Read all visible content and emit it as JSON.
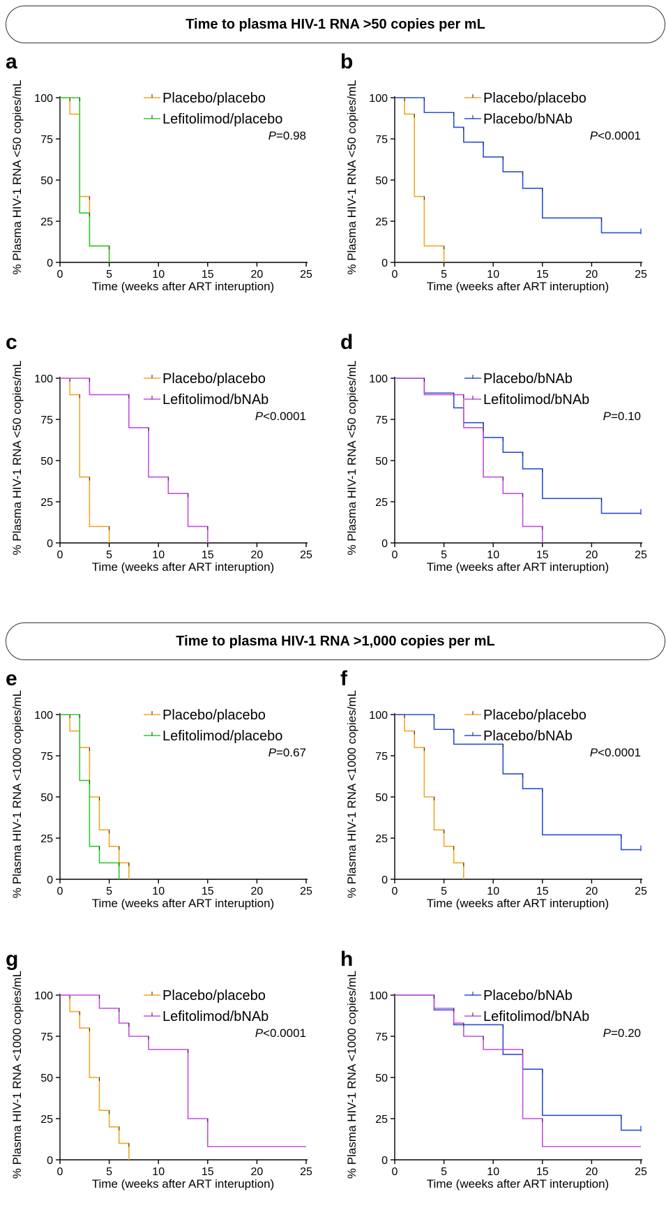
{
  "banners": [
    "Time to plasma HIV-1 RNA >50 copies per mL",
    "Time to plasma HIV-1 RNA >1,000 copies per mL"
  ],
  "colors": {
    "Placebo/placebo": "#f5a623",
    "Lefitolimod/placebo": "#2ecc2e",
    "Placebo/bNAb": "#2a4fd6",
    "Lefitolimod/bNAb": "#c44ee0"
  },
  "chart_data": [
    {
      "panel": "a",
      "type": "line",
      "step": true,
      "xlabel": "Time (weeks after ART interuption)",
      "ylabel": "% Plasma HIV-1 RNA <50 copies/mL",
      "xlim": [
        0,
        25
      ],
      "ylim": [
        0,
        100
      ],
      "xticks": [
        0,
        5,
        10,
        15,
        20,
        25
      ],
      "yticks": [
        0,
        25,
        50,
        75,
        100
      ],
      "pvalue": "0.98",
      "pvalue_op": "=",
      "series": [
        {
          "name": "Placebo/placebo",
          "x": [
            0,
            1,
            2,
            3,
            5
          ],
          "y": [
            100,
            90,
            40,
            10,
            0
          ]
        },
        {
          "name": "Lefitolimod/placebo",
          "x": [
            0,
            2,
            3,
            5
          ],
          "y": [
            100,
            30,
            10,
            0
          ]
        }
      ]
    },
    {
      "panel": "b",
      "type": "line",
      "step": true,
      "xlabel": "Time (weeks after ART interuption)",
      "ylabel": "% Plasma HIV-1 RNA <50 copies/mL",
      "xlim": [
        0,
        25
      ],
      "ylim": [
        0,
        100
      ],
      "xticks": [
        0,
        5,
        10,
        15,
        20,
        25
      ],
      "yticks": [
        0,
        25,
        50,
        75,
        100
      ],
      "pvalue": "0.0001",
      "pvalue_op": "<",
      "series": [
        {
          "name": "Placebo/placebo",
          "x": [
            0,
            1,
            2,
            3,
            5
          ],
          "y": [
            100,
            90,
            40,
            10,
            0
          ]
        },
        {
          "name": "Placebo/bNAb",
          "x": [
            0,
            3,
            6,
            7,
            9,
            11,
            13,
            15,
            21,
            25
          ],
          "y": [
            100,
            91,
            82,
            73,
            64,
            55,
            45,
            27,
            18,
            18
          ],
          "censored_end": true
        }
      ]
    },
    {
      "panel": "c",
      "type": "line",
      "step": true,
      "xlabel": "Time (weeks after ART interuption)",
      "ylabel": "% Plasma HIV-1 RNA <50 copies/mL",
      "xlim": [
        0,
        25
      ],
      "ylim": [
        0,
        100
      ],
      "xticks": [
        0,
        5,
        10,
        15,
        20,
        25
      ],
      "yticks": [
        0,
        25,
        50,
        75,
        100
      ],
      "pvalue": "0.0001",
      "pvalue_op": "<",
      "series": [
        {
          "name": "Placebo/placebo",
          "x": [
            0,
            1,
            2,
            3,
            5
          ],
          "y": [
            100,
            90,
            40,
            10,
            0
          ]
        },
        {
          "name": "Lefitolimod/bNAb",
          "x": [
            0,
            3,
            7,
            9,
            11,
            13,
            15
          ],
          "y": [
            100,
            90,
            70,
            40,
            30,
            10,
            0
          ]
        }
      ]
    },
    {
      "panel": "d",
      "type": "line",
      "step": true,
      "xlabel": "Time (weeks after ART interuption)",
      "ylabel": "% Plasma HIV-1 RNA <50 copies/mL",
      "xlim": [
        0,
        25
      ],
      "ylim": [
        0,
        100
      ],
      "xticks": [
        0,
        5,
        10,
        15,
        20,
        25
      ],
      "yticks": [
        0,
        25,
        50,
        75,
        100
      ],
      "pvalue": "0.10",
      "pvalue_op": "=",
      "series": [
        {
          "name": "Placebo/bNAb",
          "x": [
            0,
            3,
            6,
            7,
            9,
            11,
            13,
            15,
            21,
            25
          ],
          "y": [
            100,
            91,
            82,
            73,
            64,
            55,
            45,
            27,
            18,
            18
          ],
          "censored_end": true
        },
        {
          "name": "Lefitolimod/bNAb",
          "x": [
            0,
            3,
            7,
            9,
            11,
            13,
            15
          ],
          "y": [
            100,
            90,
            70,
            40,
            30,
            10,
            0
          ]
        }
      ]
    },
    {
      "panel": "e",
      "type": "line",
      "step": true,
      "xlabel": "Time (weeks after ART interuption)",
      "ylabel": "% Plasma HIV-1 RNA <1000 copies/mL",
      "xlim": [
        0,
        25
      ],
      "ylim": [
        0,
        100
      ],
      "xticks": [
        0,
        5,
        10,
        15,
        20,
        25
      ],
      "yticks": [
        0,
        25,
        50,
        75,
        100
      ],
      "pvalue": "0.67",
      "pvalue_op": "=",
      "series": [
        {
          "name": "Placebo/placebo",
          "x": [
            0,
            1,
            2,
            3,
            4,
            5,
            6,
            7
          ],
          "y": [
            100,
            90,
            80,
            50,
            30,
            20,
            10,
            0
          ]
        },
        {
          "name": "Lefitolimod/placebo",
          "x": [
            0,
            2,
            3,
            4,
            6
          ],
          "y": [
            100,
            60,
            20,
            10,
            0
          ]
        }
      ]
    },
    {
      "panel": "f",
      "type": "line",
      "step": true,
      "xlabel": "Time (weeks after ART interuption)",
      "ylabel": "% Plasma HIV-1 RNA <1000 copies/mL",
      "xlim": [
        0,
        25
      ],
      "ylim": [
        0,
        100
      ],
      "xticks": [
        0,
        5,
        10,
        15,
        20,
        25
      ],
      "yticks": [
        0,
        25,
        50,
        75,
        100
      ],
      "pvalue": "0.0001",
      "pvalue_op": "<",
      "series": [
        {
          "name": "Placebo/placebo",
          "x": [
            0,
            1,
            2,
            3,
            4,
            5,
            6,
            7
          ],
          "y": [
            100,
            90,
            80,
            50,
            30,
            20,
            10,
            0
          ]
        },
        {
          "name": "Placebo/bNAb",
          "x": [
            0,
            4,
            6,
            11,
            13,
            15,
            23,
            25
          ],
          "y": [
            100,
            91,
            82,
            64,
            55,
            27,
            18,
            18
          ],
          "censored_end": true
        }
      ]
    },
    {
      "panel": "g",
      "type": "line",
      "step": true,
      "xlabel": "Time (weeks after ART interuption)",
      "ylabel": "% Plasma HIV-1 RNA <1000 copies/mL",
      "xlim": [
        0,
        25
      ],
      "ylim": [
        0,
        100
      ],
      "xticks": [
        0,
        5,
        10,
        15,
        20,
        25
      ],
      "yticks": [
        0,
        25,
        50,
        75,
        100
      ],
      "pvalue": "0.0001",
      "pvalue_op": "<",
      "series": [
        {
          "name": "Placebo/placebo",
          "x": [
            0,
            1,
            2,
            3,
            4,
            5,
            6,
            7
          ],
          "y": [
            100,
            90,
            80,
            50,
            30,
            20,
            10,
            0
          ]
        },
        {
          "name": "Lefitolimod/bNAb",
          "x": [
            0,
            4,
            6,
            7,
            9,
            13,
            15,
            25
          ],
          "y": [
            100,
            92,
            83,
            75,
            67,
            25,
            8,
            8
          ],
          "censored_end": false
        }
      ]
    },
    {
      "panel": "h",
      "type": "line",
      "step": true,
      "xlabel": "Time (weeks after ART interuption)",
      "ylabel": "% Plasma HIV-1 RNA <1000 copies/mL",
      "xlim": [
        0,
        25
      ],
      "ylim": [
        0,
        100
      ],
      "xticks": [
        0,
        5,
        10,
        15,
        20,
        25
      ],
      "yticks": [
        0,
        25,
        50,
        75,
        100
      ],
      "pvalue": "0.20",
      "pvalue_op": "=",
      "series": [
        {
          "name": "Placebo/bNAb",
          "x": [
            0,
            4,
            6,
            11,
            13,
            15,
            23,
            25
          ],
          "y": [
            100,
            91,
            82,
            64,
            55,
            27,
            18,
            18
          ],
          "censored_end": true
        },
        {
          "name": "Lefitolimod/bNAb",
          "x": [
            0,
            4,
            6,
            7,
            9,
            13,
            15,
            25
          ],
          "y": [
            100,
            92,
            83,
            75,
            67,
            25,
            8,
            8
          ],
          "censored_end": false
        }
      ]
    }
  ]
}
